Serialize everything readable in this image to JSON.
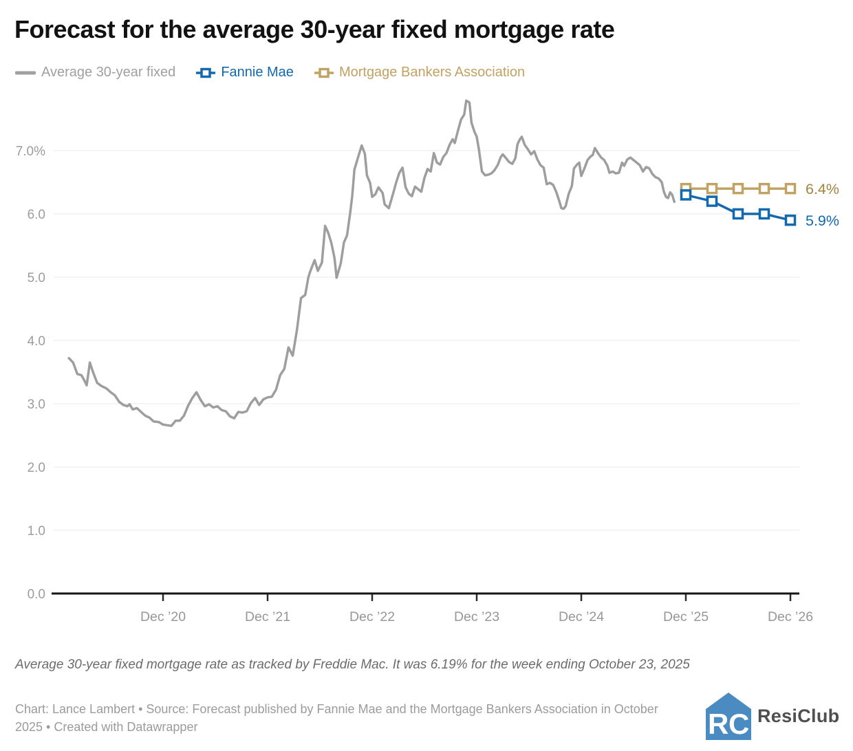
{
  "header": {
    "title": "Forecast for the average 30-year fixed mortgage rate"
  },
  "legend": {
    "items": [
      {
        "label": "Average 30-year fixed",
        "color": "#a0a0a0",
        "marker": "line"
      },
      {
        "label": "Fannie Mae",
        "color": "#1269ad",
        "marker": "square"
      },
      {
        "label": "Mortgage Bankers Association",
        "color": "#c2a263",
        "marker": "square"
      }
    ]
  },
  "chart_data": {
    "type": "line",
    "title": "Forecast for the average 30-year fixed mortgage rate",
    "xlabel": "",
    "ylabel": "",
    "ylim": [
      0,
      7.86
    ],
    "grid": "horizontal",
    "legend_position": "top",
    "yticks": [
      {
        "value": 0,
        "label": "0.0"
      },
      {
        "value": 1,
        "label": "1.0"
      },
      {
        "value": 2,
        "label": "2.0"
      },
      {
        "value": 3,
        "label": "3.0"
      },
      {
        "value": 4,
        "label": "4.0"
      },
      {
        "value": 5,
        "label": "5.0"
      },
      {
        "value": 6,
        "label": "6.0"
      },
      {
        "value": 7,
        "label": "7.0%"
      }
    ],
    "xticks": [
      {
        "t": 2020.92,
        "label": "Dec ’20"
      },
      {
        "t": 2021.92,
        "label": "Dec ’21"
      },
      {
        "t": 2022.92,
        "label": "Dec ’22"
      },
      {
        "t": 2023.92,
        "label": "Dec ’23"
      },
      {
        "t": 2024.92,
        "label": "Dec ’24"
      },
      {
        "t": 2025.92,
        "label": "Dec ’25"
      },
      {
        "t": 2026.92,
        "label": "Dec ’26"
      }
    ],
    "series": [
      {
        "name": "Average 30-year fixed",
        "color": "#9e9e9e",
        "style": "line",
        "points": [
          [
            2020.02,
            3.72
          ],
          [
            2020.06,
            3.65
          ],
          [
            2020.1,
            3.47
          ],
          [
            2020.14,
            3.45
          ],
          [
            2020.17,
            3.36
          ],
          [
            2020.19,
            3.29
          ],
          [
            2020.22,
            3.65
          ],
          [
            2020.25,
            3.5
          ],
          [
            2020.29,
            3.33
          ],
          [
            2020.33,
            3.28
          ],
          [
            2020.38,
            3.24
          ],
          [
            2020.42,
            3.18
          ],
          [
            2020.46,
            3.13
          ],
          [
            2020.5,
            3.03
          ],
          [
            2020.54,
            2.98
          ],
          [
            2020.58,
            2.96
          ],
          [
            2020.6,
            2.99
          ],
          [
            2020.63,
            2.91
          ],
          [
            2020.67,
            2.93
          ],
          [
            2020.71,
            2.87
          ],
          [
            2020.75,
            2.81
          ],
          [
            2020.79,
            2.78
          ],
          [
            2020.83,
            2.72
          ],
          [
            2020.88,
            2.71
          ],
          [
            2020.92,
            2.67
          ],
          [
            2020.96,
            2.66
          ],
          [
            2021.0,
            2.65
          ],
          [
            2021.04,
            2.73
          ],
          [
            2021.08,
            2.73
          ],
          [
            2021.12,
            2.81
          ],
          [
            2021.16,
            2.97
          ],
          [
            2021.2,
            3.09
          ],
          [
            2021.24,
            3.18
          ],
          [
            2021.28,
            3.06
          ],
          [
            2021.32,
            2.96
          ],
          [
            2021.36,
            2.99
          ],
          [
            2021.4,
            2.94
          ],
          [
            2021.44,
            2.96
          ],
          [
            2021.48,
            2.9
          ],
          [
            2021.52,
            2.88
          ],
          [
            2021.56,
            2.8
          ],
          [
            2021.6,
            2.77
          ],
          [
            2021.64,
            2.87
          ],
          [
            2021.68,
            2.86
          ],
          [
            2021.72,
            2.88
          ],
          [
            2021.76,
            3.01
          ],
          [
            2021.8,
            3.09
          ],
          [
            2021.84,
            2.98
          ],
          [
            2021.88,
            3.07
          ],
          [
            2021.92,
            3.1
          ],
          [
            2021.96,
            3.11
          ],
          [
            2022.0,
            3.22
          ],
          [
            2022.04,
            3.45
          ],
          [
            2022.08,
            3.55
          ],
          [
            2022.12,
            3.89
          ],
          [
            2022.16,
            3.76
          ],
          [
            2022.2,
            4.16
          ],
          [
            2022.24,
            4.67
          ],
          [
            2022.28,
            4.72
          ],
          [
            2022.31,
            5.0
          ],
          [
            2022.33,
            5.1
          ],
          [
            2022.37,
            5.27
          ],
          [
            2022.4,
            5.1
          ],
          [
            2022.44,
            5.23
          ],
          [
            2022.47,
            5.81
          ],
          [
            2022.5,
            5.7
          ],
          [
            2022.53,
            5.54
          ],
          [
            2022.56,
            5.3
          ],
          [
            2022.58,
            4.99
          ],
          [
            2022.62,
            5.22
          ],
          [
            2022.65,
            5.55
          ],
          [
            2022.68,
            5.66
          ],
          [
            2022.71,
            6.02
          ],
          [
            2022.73,
            6.29
          ],
          [
            2022.75,
            6.7
          ],
          [
            2022.79,
            6.92
          ],
          [
            2022.82,
            7.08
          ],
          [
            2022.85,
            6.95
          ],
          [
            2022.87,
            6.61
          ],
          [
            2022.9,
            6.49
          ],
          [
            2022.92,
            6.27
          ],
          [
            2022.95,
            6.31
          ],
          [
            2022.98,
            6.42
          ],
          [
            2023.02,
            6.33
          ],
          [
            2023.04,
            6.15
          ],
          [
            2023.08,
            6.09
          ],
          [
            2023.12,
            6.32
          ],
          [
            2023.15,
            6.5
          ],
          [
            2023.18,
            6.65
          ],
          [
            2023.21,
            6.73
          ],
          [
            2023.24,
            6.42
          ],
          [
            2023.27,
            6.32
          ],
          [
            2023.3,
            6.28
          ],
          [
            2023.33,
            6.43
          ],
          [
            2023.36,
            6.39
          ],
          [
            2023.39,
            6.35
          ],
          [
            2023.42,
            6.57
          ],
          [
            2023.45,
            6.71
          ],
          [
            2023.48,
            6.67
          ],
          [
            2023.51,
            6.96
          ],
          [
            2023.54,
            6.81
          ],
          [
            2023.57,
            6.78
          ],
          [
            2023.6,
            6.9
          ],
          [
            2023.63,
            6.96
          ],
          [
            2023.66,
            7.09
          ],
          [
            2023.69,
            7.18
          ],
          [
            2023.71,
            7.12
          ],
          [
            2023.74,
            7.31
          ],
          [
            2023.77,
            7.49
          ],
          [
            2023.8,
            7.57
          ],
          [
            2023.82,
            7.79
          ],
          [
            2023.85,
            7.76
          ],
          [
            2023.87,
            7.44
          ],
          [
            2023.9,
            7.29
          ],
          [
            2023.92,
            7.22
          ],
          [
            2023.94,
            7.03
          ],
          [
            2023.97,
            6.67
          ],
          [
            2024.0,
            6.61
          ],
          [
            2024.03,
            6.62
          ],
          [
            2024.06,
            6.64
          ],
          [
            2024.09,
            6.69
          ],
          [
            2024.12,
            6.77
          ],
          [
            2024.15,
            6.9
          ],
          [
            2024.17,
            6.94
          ],
          [
            2024.2,
            6.88
          ],
          [
            2024.23,
            6.82
          ],
          [
            2024.26,
            6.79
          ],
          [
            2024.29,
            6.88
          ],
          [
            2024.31,
            7.1
          ],
          [
            2024.33,
            7.17
          ],
          [
            2024.35,
            7.22
          ],
          [
            2024.38,
            7.09
          ],
          [
            2024.41,
            7.02
          ],
          [
            2024.44,
            6.94
          ],
          [
            2024.47,
            6.99
          ],
          [
            2024.5,
            6.86
          ],
          [
            2024.53,
            6.77
          ],
          [
            2024.56,
            6.73
          ],
          [
            2024.59,
            6.47
          ],
          [
            2024.62,
            6.49
          ],
          [
            2024.65,
            6.46
          ],
          [
            2024.68,
            6.35
          ],
          [
            2024.71,
            6.2
          ],
          [
            2024.73,
            6.09
          ],
          [
            2024.75,
            6.08
          ],
          [
            2024.77,
            6.12
          ],
          [
            2024.8,
            6.32
          ],
          [
            2024.83,
            6.44
          ],
          [
            2024.85,
            6.72
          ],
          [
            2024.88,
            6.78
          ],
          [
            2024.9,
            6.81
          ],
          [
            2024.92,
            6.6
          ],
          [
            2024.95,
            6.72
          ],
          [
            2024.98,
            6.85
          ],
          [
            2025.01,
            6.91
          ],
          [
            2025.03,
            6.93
          ],
          [
            2025.05,
            7.04
          ],
          [
            2025.08,
            6.96
          ],
          [
            2025.11,
            6.89
          ],
          [
            2025.14,
            6.85
          ],
          [
            2025.17,
            6.76
          ],
          [
            2025.19,
            6.65
          ],
          [
            2025.22,
            6.67
          ],
          [
            2025.25,
            6.64
          ],
          [
            2025.28,
            6.65
          ],
          [
            2025.31,
            6.81
          ],
          [
            2025.33,
            6.76
          ],
          [
            2025.36,
            6.86
          ],
          [
            2025.39,
            6.89
          ],
          [
            2025.42,
            6.85
          ],
          [
            2025.45,
            6.81
          ],
          [
            2025.48,
            6.77
          ],
          [
            2025.51,
            6.67
          ],
          [
            2025.54,
            6.74
          ],
          [
            2025.57,
            6.72
          ],
          [
            2025.6,
            6.63
          ],
          [
            2025.63,
            6.58
          ],
          [
            2025.66,
            6.56
          ],
          [
            2025.69,
            6.5
          ],
          [
            2025.71,
            6.35
          ],
          [
            2025.73,
            6.27
          ],
          [
            2025.75,
            6.25
          ],
          [
            2025.77,
            6.34
          ],
          [
            2025.79,
            6.3
          ],
          [
            2025.81,
            6.19
          ]
        ]
      },
      {
        "name": "Fannie Mae",
        "color": "#1269ad",
        "style": "line+marker",
        "end_label": "5.9%",
        "end_label_color": "#1269ad",
        "points": [
          [
            2025.92,
            6.3
          ],
          [
            2026.17,
            6.2
          ],
          [
            2026.42,
            6.0
          ],
          [
            2026.67,
            6.0
          ],
          [
            2026.92,
            5.9
          ]
        ]
      },
      {
        "name": "Mortgage Bankers Association",
        "color": "#c2a263",
        "style": "line+marker",
        "end_label": "6.4%",
        "end_label_color": "#a1843c",
        "points": [
          [
            2025.92,
            6.4
          ],
          [
            2026.17,
            6.4
          ],
          [
            2026.42,
            6.4
          ],
          [
            2026.67,
            6.4
          ],
          [
            2026.92,
            6.4
          ]
        ]
      }
    ]
  },
  "notes": {
    "description": "Average 30-year fixed mortgage rate as tracked by Freddie Mac. It was 6.19% for the week ending October 23, 2025",
    "byline": "Chart: Lance Lambert • Source: Forecast published by Fannie Mae and the Mortgage Bankers Association in October 2025 • Created with Datawrapper"
  },
  "logo": {
    "text": "ResiClub",
    "blue": "#4a8cc2"
  }
}
